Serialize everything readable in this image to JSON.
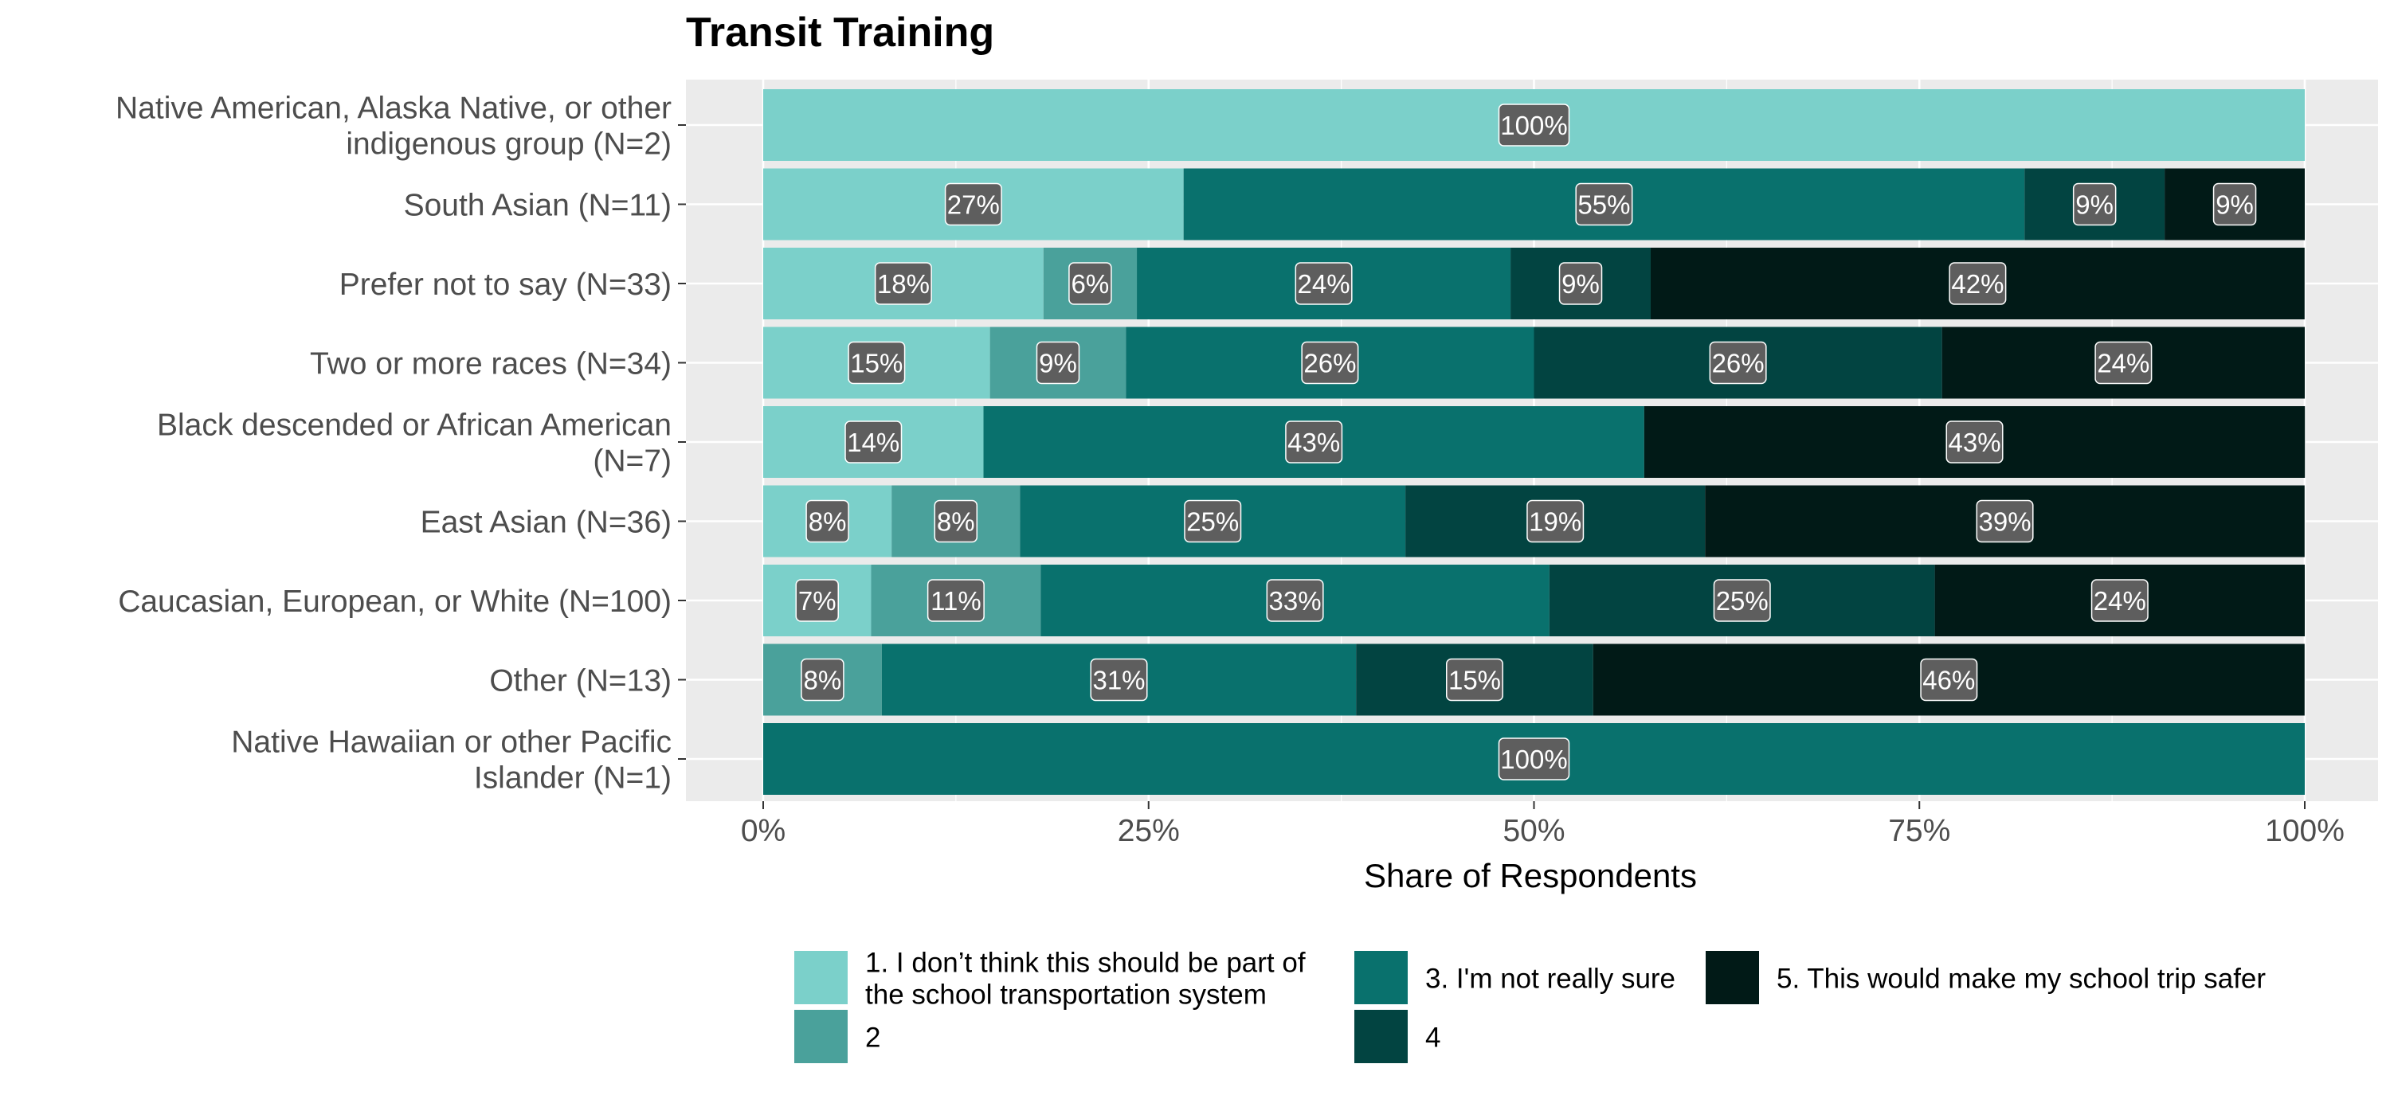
{
  "chart_data": {
    "type": "bar",
    "orientation": "horizontal",
    "stacked": true,
    "title": "Transit Training",
    "xlabel": "Share of Respondents",
    "ylabel": "",
    "xlim": [
      0,
      1
    ],
    "x_ticks": [
      0,
      0.25,
      0.5,
      0.75,
      1
    ],
    "x_tick_labels": [
      "0%",
      "25%",
      "50%",
      "75%",
      "100%"
    ],
    "grid": true,
    "legend_position": "bottom",
    "categories": [
      [
        "Native American, Alaska Native, or other",
        "indigenous group (N=2)"
      ],
      [
        "South Asian (N=11)"
      ],
      [
        "Prefer not to say (N=33)"
      ],
      [
        "Two or more races (N=34)"
      ],
      [
        "Black descended or African American",
        "(N=7)"
      ],
      [
        "East Asian (N=36)"
      ],
      [
        "Caucasian, European, or White (N=100)"
      ],
      [
        "Other (N=13)"
      ],
      [
        "Native Hawaiian or other Pacific",
        "Islander (N=1)"
      ]
    ],
    "series": [
      {
        "name": [
          "1. I don’t think this should be part of",
          "the school transportation system"
        ],
        "color": "#7BD0CA",
        "values": [
          1.0,
          0.2727,
          0.1818,
          0.1471,
          0.1429,
          0.0833,
          0.07,
          0,
          0
        ],
        "labels": [
          "100%",
          "27%",
          "18%",
          "15%",
          "14%",
          "8%",
          "7%",
          "",
          ""
        ]
      },
      {
        "name": [
          "2"
        ],
        "color": "#4AA19B",
        "values": [
          0,
          0,
          0.0606,
          0.0882,
          0,
          0.0833,
          0.11,
          0.0769,
          0
        ],
        "labels": [
          "",
          "",
          "6%",
          "9%",
          "",
          "8%",
          "11%",
          "8%",
          ""
        ]
      },
      {
        "name": [
          "3. I'm not really sure"
        ],
        "color": "#09716D",
        "values": [
          0,
          0.5455,
          0.2424,
          0.2647,
          0.4286,
          0.25,
          0.33,
          0.3077,
          1.0
        ],
        "labels": [
          "",
          "55%",
          "24%",
          "26%",
          "43%",
          "25%",
          "33%",
          "31%",
          "100%"
        ]
      },
      {
        "name": [
          "4"
        ],
        "color": "#024441",
        "values": [
          0,
          0.0909,
          0.0909,
          0.2647,
          0,
          0.1944,
          0.25,
          0.1538,
          0
        ],
        "labels": [
          "",
          "9%",
          "9%",
          "26%",
          "",
          "19%",
          "25%",
          "15%",
          ""
        ]
      },
      {
        "name": [
          "5. This would make my school trip safer"
        ],
        "color": "#011A17",
        "values": [
          0,
          0.0909,
          0.4242,
          0.2353,
          0.4286,
          0.3889,
          0.24,
          0.4615,
          0
        ],
        "labels": [
          "",
          "9%",
          "42%",
          "24%",
          "43%",
          "39%",
          "24%",
          "46%",
          ""
        ]
      }
    ]
  }
}
